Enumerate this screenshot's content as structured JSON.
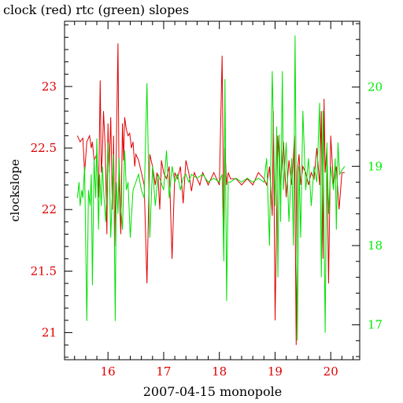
{
  "chart_data": {
    "type": "line",
    "title": "clock (red) rtc (green) slopes",
    "xlabel": "2007-04-15 monopole",
    "ylabel": "clockslope",
    "y2label": "",
    "xlim": [
      15.22,
      20.52
    ],
    "ylim": [
      20.78,
      23.53
    ],
    "y2lim": [
      16.56,
      20.83
    ],
    "x_ticks": [
      16,
      17,
      18,
      19,
      20
    ],
    "x_minor_step": 0.2,
    "y_ticks": [
      21,
      21.5,
      22,
      22.5,
      23
    ],
    "y_minor_step": 0.1,
    "y2_ticks": [
      17,
      18,
      19,
      20
    ],
    "y2_minor_step": 0.2,
    "colors": {
      "red": "#e00000",
      "green": "#00e000",
      "axis": "#000000"
    },
    "series": [
      {
        "color_ref": "red",
        "axis": "left",
        "x": [
          15.45,
          15.5,
          15.55,
          15.58,
          15.62,
          15.67,
          15.7,
          15.72,
          15.75,
          15.8,
          15.83,
          15.86,
          15.88,
          15.9,
          15.92,
          15.95,
          15.98,
          16.0,
          16.02,
          16.05,
          16.08,
          16.1,
          16.12,
          16.15,
          16.18,
          16.2,
          16.23,
          16.26,
          16.28,
          16.3,
          16.33,
          16.36,
          16.39,
          16.42,
          16.45,
          16.48,
          16.5,
          16.55,
          16.6,
          16.65,
          16.7,
          16.75,
          16.8,
          16.85,
          16.88,
          16.9,
          16.93,
          16.96,
          17.0,
          17.05,
          17.1,
          17.15,
          17.2,
          17.25,
          17.3,
          17.35,
          17.4,
          17.45,
          17.5,
          17.55,
          17.6,
          17.65,
          17.7,
          17.75,
          17.8,
          17.85,
          17.9,
          17.95,
          18.0,
          18.05,
          18.08,
          18.1,
          18.13,
          18.16,
          18.2,
          18.3,
          18.4,
          18.5,
          18.6,
          18.7,
          18.8,
          18.85,
          18.9,
          18.95,
          18.97,
          19.0,
          19.05,
          19.1,
          19.15,
          19.2,
          19.25,
          19.3,
          19.35,
          19.38,
          19.4,
          19.43,
          19.46,
          19.5,
          19.55,
          19.6,
          19.65,
          19.7,
          19.75,
          19.8,
          19.83,
          19.86,
          19.88,
          19.9,
          19.93,
          19.96,
          20.0,
          20.05,
          20.08,
          20.1,
          20.12,
          20.15,
          20.2,
          20.25
        ],
        "values": [
          22.6,
          22.55,
          22.58,
          22.3,
          22.55,
          22.6,
          22.5,
          22.55,
          22.4,
          22.45,
          22.1,
          23.05,
          22.3,
          22.45,
          22.8,
          22.5,
          21.8,
          22.7,
          22.3,
          22.75,
          22.0,
          22.6,
          21.7,
          22.5,
          23.35,
          22.2,
          21.8,
          22.7,
          22.4,
          22.75,
          22.65,
          22.6,
          22.62,
          22.5,
          22.55,
          22.35,
          22.45,
          22.4,
          22.3,
          22.2,
          21.4,
          22.45,
          22.35,
          22.2,
          22.3,
          22.25,
          22.0,
          22.4,
          22.3,
          22.25,
          22.35,
          21.6,
          22.3,
          22.25,
          22.35,
          22.05,
          22.4,
          22.3,
          22.15,
          22.3,
          22.25,
          22.2,
          22.3,
          22.25,
          22.2,
          22.25,
          22.3,
          22.25,
          22.2,
          23.25,
          21.8,
          22.5,
          22.2,
          22.3,
          22.25,
          22.25,
          22.2,
          22.25,
          22.2,
          22.3,
          22.25,
          22.2,
          22.35,
          21.95,
          22.8,
          21.1,
          22.6,
          22.2,
          22.55,
          22.1,
          22.4,
          22.2,
          22.6,
          20.9,
          22.3,
          22.45,
          22.2,
          22.35,
          22.3,
          22.2,
          22.3,
          22.25,
          22.5,
          22.2,
          22.8,
          21.6,
          22.9,
          22.3,
          22.5,
          21.4,
          22.6,
          22.2,
          22.3,
          22.35,
          22.2,
          22.0,
          22.3,
          22.3
        ]
      },
      {
        "color_ref": "green",
        "axis": "right",
        "x": [
          15.45,
          15.48,
          15.5,
          15.53,
          15.55,
          15.58,
          15.62,
          15.65,
          15.68,
          15.7,
          15.72,
          15.75,
          15.78,
          15.8,
          15.83,
          15.85,
          15.88,
          15.9,
          15.93,
          15.96,
          16.0,
          16.03,
          16.05,
          16.08,
          16.1,
          16.13,
          16.15,
          16.18,
          16.2,
          16.23,
          16.26,
          16.3,
          16.33,
          16.36,
          16.4,
          16.45,
          16.5,
          16.55,
          16.6,
          16.65,
          16.7,
          16.75,
          16.8,
          16.85,
          16.9,
          16.95,
          17.0,
          17.05,
          17.1,
          17.15,
          17.2,
          17.25,
          17.3,
          17.35,
          17.4,
          17.45,
          17.5,
          17.6,
          17.7,
          17.8,
          17.9,
          18.0,
          18.05,
          18.08,
          18.1,
          18.13,
          18.16,
          18.2,
          18.3,
          18.4,
          18.5,
          18.6,
          18.7,
          18.8,
          18.85,
          18.9,
          18.95,
          19.0,
          19.03,
          19.05,
          19.08,
          19.1,
          19.13,
          19.15,
          19.2,
          19.25,
          19.3,
          19.33,
          19.36,
          19.4,
          19.43,
          19.46,
          19.5,
          19.55,
          19.6,
          19.65,
          19.7,
          19.75,
          19.8,
          19.83,
          19.86,
          19.9,
          19.93,
          19.96,
          20.0,
          20.05,
          20.08,
          20.1,
          20.13,
          20.16,
          20.2,
          20.25
        ],
        "values": [
          18.6,
          18.8,
          18.5,
          18.7,
          18.6,
          19.0,
          17.05,
          18.7,
          18.5,
          18.9,
          17.5,
          19.1,
          18.6,
          19.35,
          18.2,
          18.9,
          18.5,
          19.0,
          18.6,
          18.3,
          19.3,
          18.8,
          18.1,
          18.7,
          19.15,
          17.05,
          18.8,
          18.4,
          19.1,
          18.5,
          18.2,
          19.2,
          18.7,
          18.8,
          18.1,
          18.7,
          18.8,
          18.9,
          18.7,
          18.6,
          20.05,
          18.1,
          19.0,
          18.5,
          18.9,
          18.8,
          18.7,
          19.2,
          18.6,
          19.0,
          18.8,
          18.9,
          18.7,
          18.85,
          18.9,
          18.8,
          18.9,
          18.85,
          18.9,
          18.8,
          18.85,
          18.8,
          18.9,
          17.8,
          20.1,
          17.3,
          18.8,
          18.8,
          18.85,
          18.8,
          18.85,
          18.8,
          18.85,
          18.8,
          19.1,
          18.0,
          20.2,
          18.5,
          19.5,
          17.6,
          19.4,
          18.3,
          20.2,
          18.7,
          19.3,
          18.3,
          19.1,
          18.0,
          20.65,
          16.8,
          19.0,
          18.1,
          19.7,
          18.7,
          19.1,
          18.5,
          19.0,
          18.8,
          19.8,
          17.6,
          19.7,
          16.9,
          19.3,
          18.4,
          19.0,
          18.7,
          19.1,
          18.2,
          19.3,
          18.9,
          18.95,
          19.0
        ]
      }
    ]
  }
}
